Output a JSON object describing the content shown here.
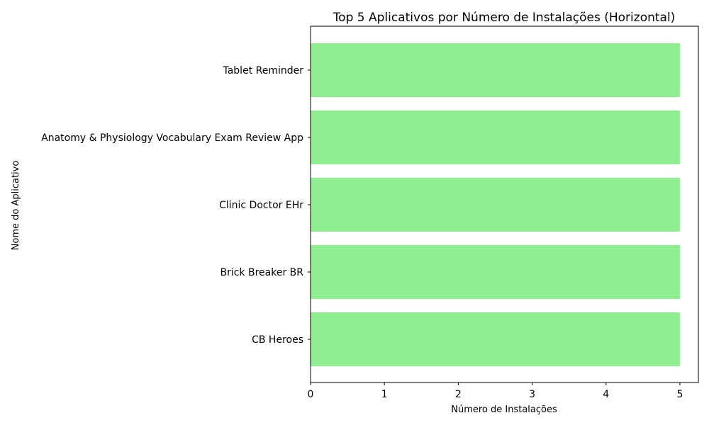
{
  "chart_data": {
    "type": "bar",
    "orientation": "horizontal",
    "title": "Top 5 Aplicativos por Número de Instalações (Horizontal)",
    "xlabel": "Número de Instalações",
    "ylabel": "Nome do Aplicativo",
    "categories": [
      "Tablet Reminder",
      "Anatomy & Physiology Vocabulary Exam Review App",
      "Clinic Doctor EHr",
      "Brick Breaker BR",
      "CB Heroes"
    ],
    "values": [
      5,
      5,
      5,
      5,
      5
    ],
    "xlim": [
      0,
      5.25
    ],
    "xticks": [
      "0",
      "1",
      "2",
      "3",
      "4",
      "5"
    ],
    "bar_color": "#90EE90",
    "grid": false
  }
}
